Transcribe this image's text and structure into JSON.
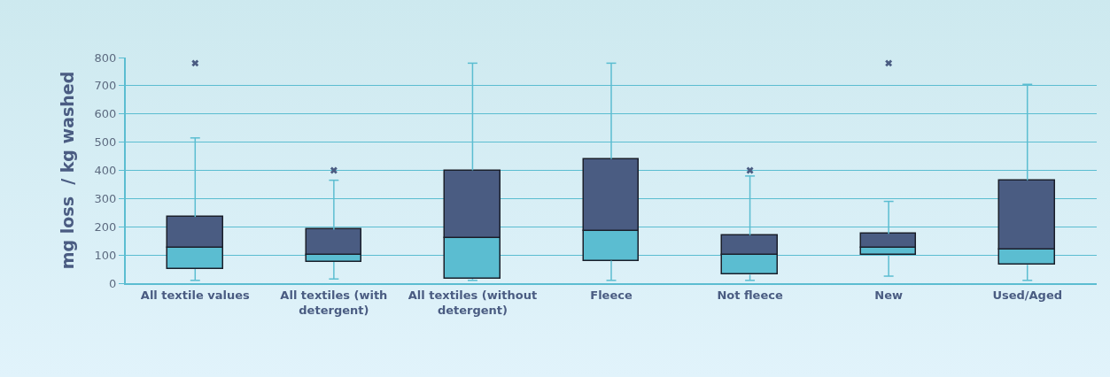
{
  "chart_data": {
    "type": "box",
    "ylabel": "mg loss  / kg washed",
    "categories": [
      "All textile values",
      "All textiles (with detergent)",
      "All textiles (without detergent)",
      "Fleece",
      "Not fleece",
      "New",
      "Used/Aged"
    ],
    "series": [
      {
        "color": "#4a5c82",
        "colors": [
          "#5bbdd1",
          "#5bbdd1",
          "#5bbdd1",
          "#5bbdd1",
          "#5bbdd1",
          "#5bbdd1",
          "#5bbdd1"
        ],
        "boxes": [
          {
            "low": 10,
            "q1": 50,
            "median": 125,
            "q3": 235,
            "high": 515,
            "outliers": [
              780
            ]
          },
          {
            "low": 15,
            "q1": 75,
            "median": 100,
            "q3": 190,
            "high": 365,
            "outliers": [
              400
            ]
          },
          {
            "low": 10,
            "q1": 15,
            "median": 160,
            "q3": 400,
            "high": 780
          },
          {
            "low": 10,
            "q1": 80,
            "median": 185,
            "q3": 440,
            "high": 780
          },
          {
            "low": 10,
            "q1": 30,
            "median": 100,
            "q3": 170,
            "high": 380,
            "outliers": [
              400
            ]
          },
          {
            "low": 25,
            "q1": 100,
            "median": 125,
            "q3": 175,
            "high": 290,
            "outliers": [
              780
            ]
          },
          {
            "low": 10,
            "q1": 65,
            "median": 120,
            "q3": 365,
            "high": 705
          }
        ]
      }
    ],
    "ylim": [
      0,
      800
    ],
    "yticks": [
      0,
      100,
      200,
      300,
      400,
      500,
      600,
      700,
      800
    ],
    "grid": "y",
    "marker": "cross"
  }
}
